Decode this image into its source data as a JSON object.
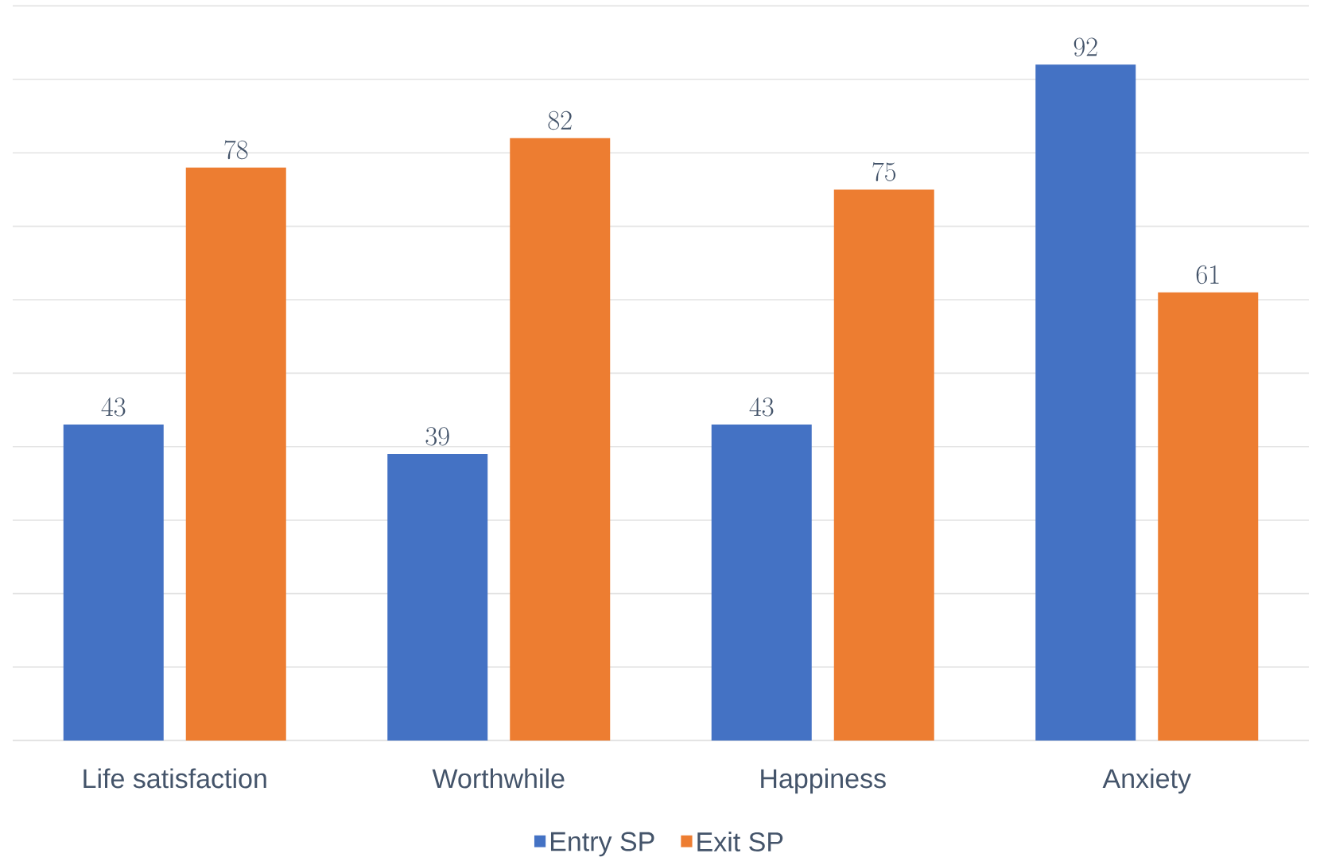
{
  "chart_data": {
    "type": "bar",
    "categories": [
      "Life satisfaction",
      "Worthwhile",
      "Happiness",
      "Anxiety"
    ],
    "series": [
      {
        "name": "Entry SP",
        "color": "#4472c4",
        "values": [
          43,
          39,
          43,
          92
        ]
      },
      {
        "name": "Exit SP",
        "color": "#ed7d31",
        "values": [
          78,
          82,
          75,
          61
        ]
      }
    ],
    "ylim": [
      0,
      100
    ],
    "yticks": [
      {
        "value": 0,
        "label": null
      },
      {
        "value": 10,
        "label": null
      },
      {
        "value": 20,
        "label": null
      },
      {
        "value": 30,
        "label": null
      },
      {
        "value": 40,
        "label": null
      },
      {
        "value": 50,
        "label": null
      },
      {
        "value": 60,
        "label": null
      },
      {
        "value": 70,
        "label": null
      },
      {
        "value": 80,
        "label": null
      },
      {
        "value": 90,
        "label": null
      },
      {
        "value": 100,
        "label": null
      }
    ],
    "tick_labels": "x",
    "grid": "y",
    "data_labels": true,
    "legend": "bottom"
  }
}
